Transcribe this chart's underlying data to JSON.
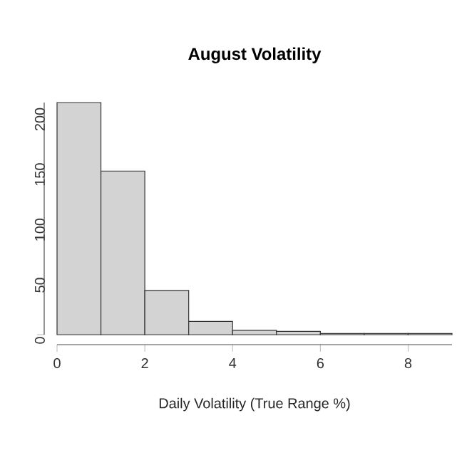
{
  "chart_data": {
    "type": "histogram",
    "title": "August Volatility",
    "xlabel": "Daily Volatility (True Range %)",
    "bins": [
      0,
      1,
      2,
      3,
      4,
      5,
      6,
      7,
      8,
      9
    ],
    "values": [
      210,
      148,
      40,
      12,
      4,
      3,
      1,
      1,
      1
    ],
    "color": "#d3d3d3",
    "xlim": [
      0,
      9
    ],
    "ylim": [
      0,
      210
    ],
    "xticks": [
      0,
      2,
      4,
      6,
      8
    ],
    "yticks": [
      0,
      50,
      100,
      150,
      200
    ],
    "grid": false
  }
}
